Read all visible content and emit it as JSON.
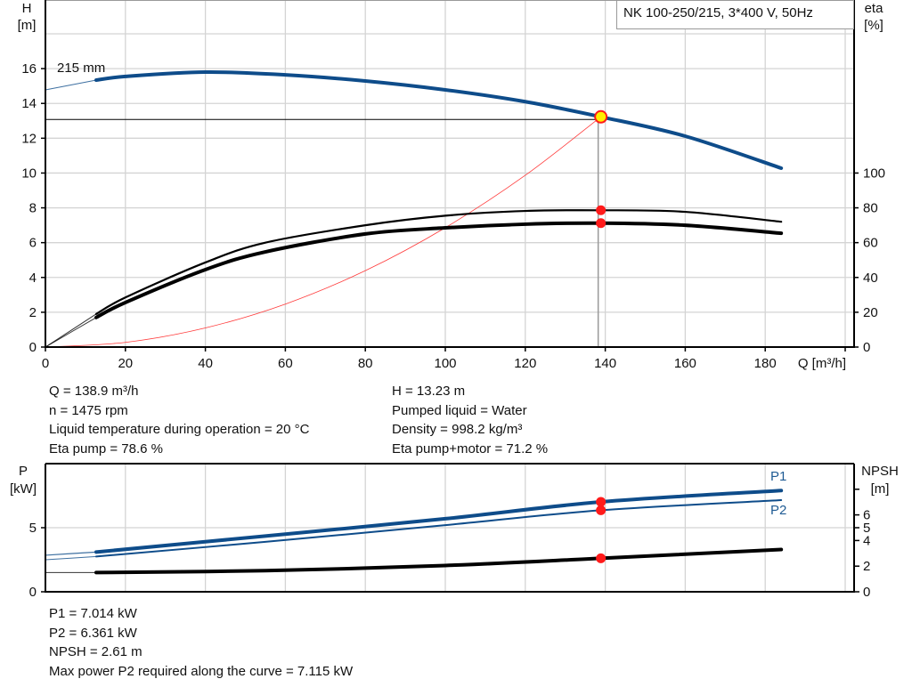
{
  "chart_data": [
    {
      "type": "line",
      "title": "NK 100-250/215, 3*400 V, 50Hz",
      "xlabel": "Q [m³/h]",
      "ylabel": [
        "H",
        "[m]"
      ],
      "y2label": [
        "eta",
        "[%]"
      ],
      "xlim": [
        0,
        200
      ],
      "ylim": [
        0,
        18
      ],
      "y2lim": [
        0,
        180
      ],
      "xticks": [
        0,
        20,
        40,
        60,
        80,
        100,
        120,
        140,
        160,
        180
      ],
      "yticks": [
        0,
        2,
        4,
        6,
        8,
        10,
        12,
        14,
        16
      ],
      "y2ticks": [
        0,
        20,
        40,
        60,
        80,
        100
      ],
      "grid": true,
      "series": [
        {
          "name": "215 mm",
          "axis": "left",
          "color": "#0e4c8a",
          "x": [
            0,
            12.7,
            20,
            40,
            60,
            80,
            100,
            120,
            138.9,
            160,
            184
          ],
          "y": [
            14.78,
            15.34,
            15.55,
            15.8,
            15.64,
            15.29,
            14.78,
            14.1,
            13.23,
            12.12,
            10.28
          ]
        },
        {
          "axis": "right",
          "color": "#000000",
          "x": [
            0,
            12.7,
            20,
            40,
            55,
            80,
            100,
            120,
            138.9,
            160,
            184
          ],
          "y": [
            0,
            19,
            28.5,
            48.6,
            60,
            70,
            75.5,
            78.2,
            78.6,
            77.7,
            72
          ]
        },
        {
          "axis": "right",
          "color": "#000000",
          "x": [
            0,
            12.7,
            20,
            40,
            55,
            80,
            100,
            120,
            138.9,
            160,
            184
          ],
          "y": [
            0,
            17,
            25.6,
            44.5,
            54.7,
            65,
            68.5,
            70.6,
            71.2,
            70,
            65.4
          ]
        },
        {
          "axis": "left",
          "color": "#ff3b3b",
          "x": [
            0,
            20,
            40,
            60,
            80,
            100,
            120,
            138.9
          ],
          "y": [
            0,
            0.27,
            1.1,
            2.47,
            4.39,
            6.86,
            9.87,
            13.23
          ]
        }
      ],
      "operating_point": {
        "Q": 138.9,
        "H": 13.23,
        "eta_pump": 78.6,
        "eta_pump_motor": 71.2
      }
    },
    {
      "type": "line",
      "ylabel": [
        "P",
        "[kW]"
      ],
      "y2label": [
        "NPSH",
        "[m]"
      ],
      "xlim": [
        0,
        200
      ],
      "ylim": [
        0,
        10
      ],
      "y2lim": [
        0,
        10
      ],
      "yticks": [
        0,
        5
      ],
      "y2ticks": [
        0,
        2,
        4,
        5,
        6,
        8
      ],
      "y2ticklabels": [
        "0",
        "2",
        "4",
        "5",
        "6",
        ""
      ],
      "grid": true,
      "series": [
        {
          "name": "P1",
          "axis": "left",
          "color": "#0e4c8a",
          "x": [
            0,
            12.7,
            55,
            100,
            138.9,
            184
          ],
          "y": [
            2.85,
            3.1,
            4.35,
            5.7,
            7.014,
            7.9
          ]
        },
        {
          "name": "P2",
          "axis": "left",
          "color": "#0e4c8a",
          "x": [
            0,
            12.7,
            55,
            100,
            138.9,
            184
          ],
          "y": [
            2.5,
            2.75,
            3.9,
            5.2,
            6.361,
            7.15
          ]
        },
        {
          "axis": "right",
          "color": "#000000",
          "x": [
            0,
            12.7,
            55,
            100,
            138.9,
            184
          ],
          "y": [
            1.5,
            1.5,
            1.65,
            2.05,
            2.61,
            3.3
          ]
        }
      ],
      "operating_point": {
        "Q": 138.9,
        "P1": 7.014,
        "P2": 6.361,
        "NPSH": 2.61
      }
    }
  ],
  "info_top": {
    "left": [
      "Q = 138.9 m³/h",
      "n = 1475 rpm",
      "Liquid temperature during operation = 20 °C",
      "Eta pump = 78.6 %"
    ],
    "right": [
      "H = 13.23 m",
      "Pumped liquid = Water",
      "Density = 998.2 kg/m³",
      "Eta pump+motor = 71.2 %"
    ]
  },
  "info_bottom": [
    "P1 = 7.014 kW",
    "P2 = 6.361 kW",
    "NPSH = 2.61 m",
    "Max power P2 required along the curve = 7.115 kW"
  ]
}
